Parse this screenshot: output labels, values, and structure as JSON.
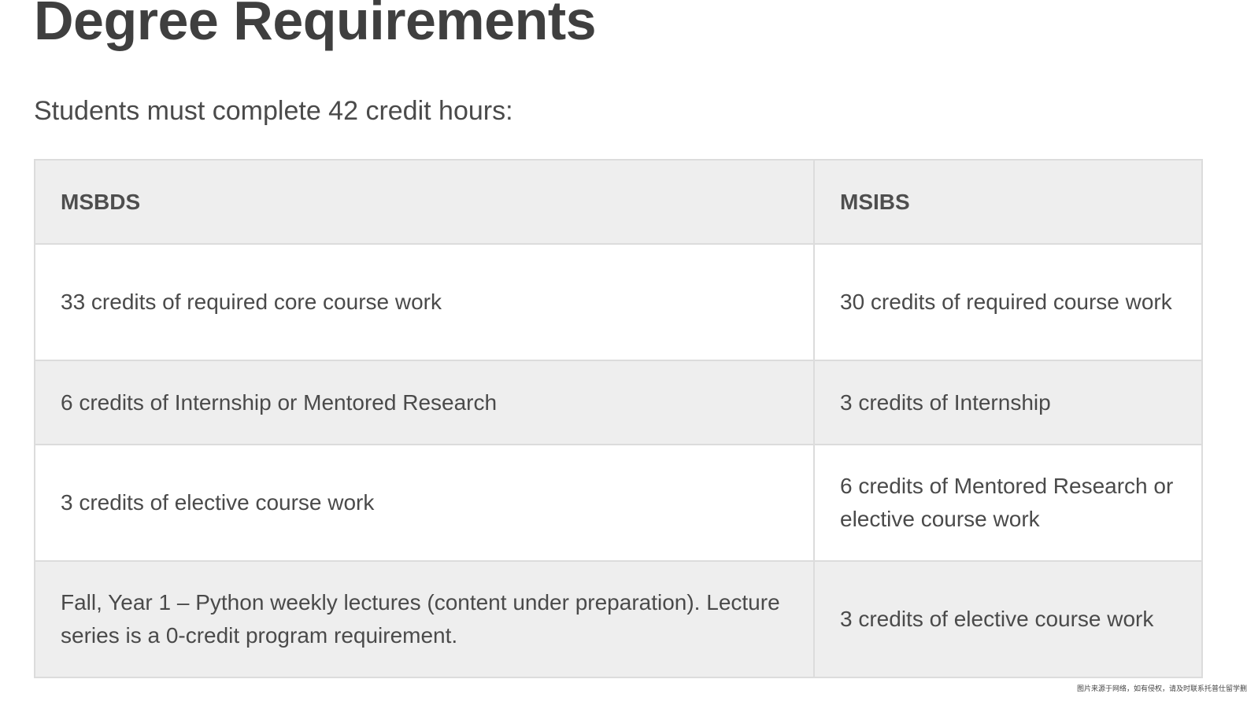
{
  "page": {
    "title": "Degree Requirements",
    "subtitle": "Students must complete 42 credit hours:"
  },
  "table": {
    "headers": [
      "MSBDS",
      "MSIBS"
    ],
    "rows": [
      [
        "33 credits of required core course work",
        "30 credits of required course work"
      ],
      [
        "6 credits of Internship or Mentored Research",
        "3 credits of Internship"
      ],
      [
        "3 credits of elective course work",
        "6 credits of Mentored Research or elective course work"
      ],
      [
        "Fall, Year 1 – Python weekly lectures (content under preparation). Lecture series is a 0-credit program requirement.",
        "3 credits of elective course work"
      ]
    ]
  },
  "watermark": "图片来源于网络，如有侵权，请及时联系托普仕留学删"
}
